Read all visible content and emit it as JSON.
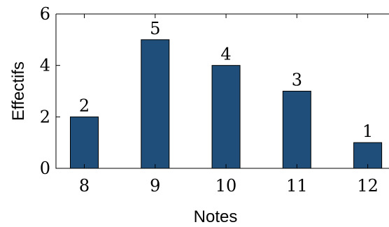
{
  "chart_data": {
    "type": "bar",
    "categories": [
      "8",
      "9",
      "10",
      "11",
      "12"
    ],
    "values": [
      2,
      5,
      4,
      3,
      1
    ],
    "data_labels": [
      "2",
      "5",
      "4",
      "3",
      "1"
    ],
    "y_ticks": [
      0,
      2,
      4,
      6
    ],
    "title": "",
    "xlabel": "Notes",
    "ylabel": "Effectifs",
    "xlim": [
      7.6,
      12.3
    ],
    "ylim": [
      0,
      6
    ],
    "grid": false,
    "colors": {
      "bar_fill": "#1f4e7a",
      "axis": "#000000"
    }
  }
}
